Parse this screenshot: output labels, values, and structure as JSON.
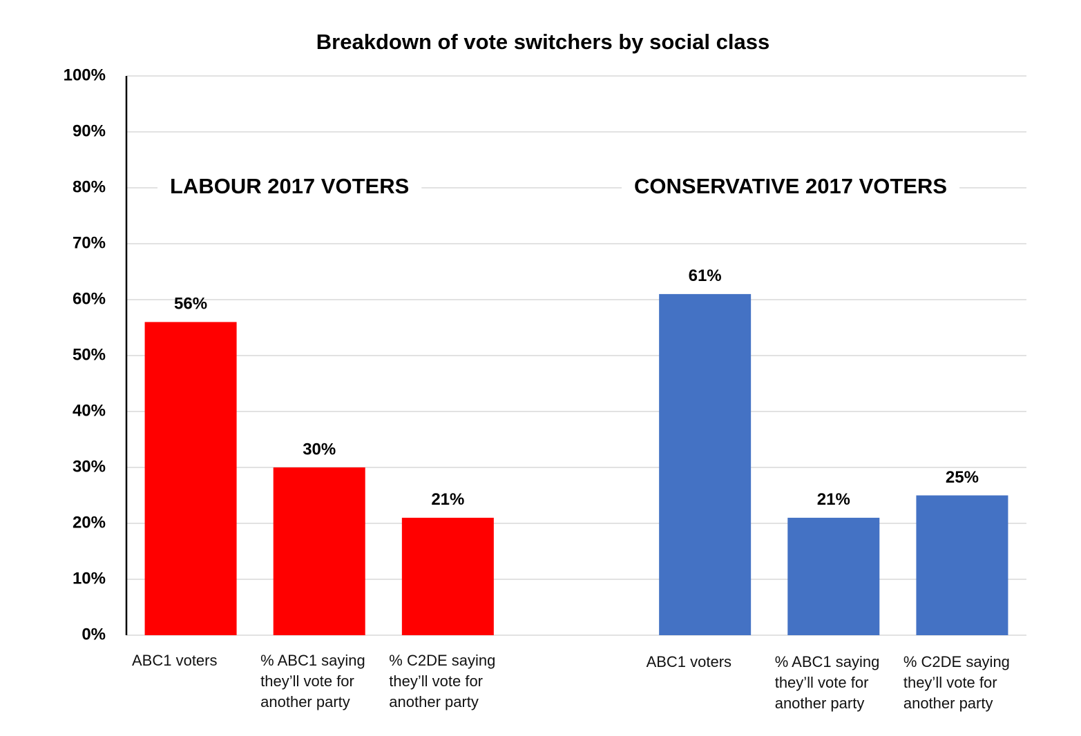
{
  "chart_data": {
    "type": "bar",
    "title": "Breakdown of vote switchers by social class",
    "categories": [
      "ABC1 voters",
      "% ABC1 saying they’ll vote for another party",
      "% C2DE saying they’ll vote for another party",
      null,
      "ABC1 voters",
      "% ABC1 saying they’ll vote for another party",
      "% C2DE saying they’ll vote for another party"
    ],
    "series": [
      {
        "name": "LABOUR 2017 VOTERS",
        "color": "#ff0000",
        "values": [
          56,
          30,
          21,
          null,
          null,
          null,
          null
        ],
        "value_labels": [
          "56%",
          "30%",
          "21%",
          null,
          null,
          null,
          null
        ]
      },
      {
        "name": "CONSERVATIVE 2017 VOTERS",
        "color": "#4472c4",
        "values": [
          null,
          null,
          null,
          null,
          61,
          21,
          25
        ],
        "value_labels": [
          null,
          null,
          null,
          null,
          "61%",
          "21%",
          "25%"
        ]
      }
    ],
    "ylim": [
      0,
      100
    ],
    "yticks": [
      {
        "value": 0,
        "label": "0%"
      },
      {
        "value": 10,
        "label": "10%"
      },
      {
        "value": 20,
        "label": "20%"
      },
      {
        "value": 30,
        "label": "30%"
      },
      {
        "value": 40,
        "label": "40%"
      },
      {
        "value": 50,
        "label": "50%"
      },
      {
        "value": 60,
        "label": "60%"
      },
      {
        "value": 70,
        "label": "70%"
      },
      {
        "value": 80,
        "label": "80%"
      },
      {
        "value": 90,
        "label": "90%"
      },
      {
        "value": 100,
        "label": "100%"
      }
    ],
    "grid": true
  }
}
